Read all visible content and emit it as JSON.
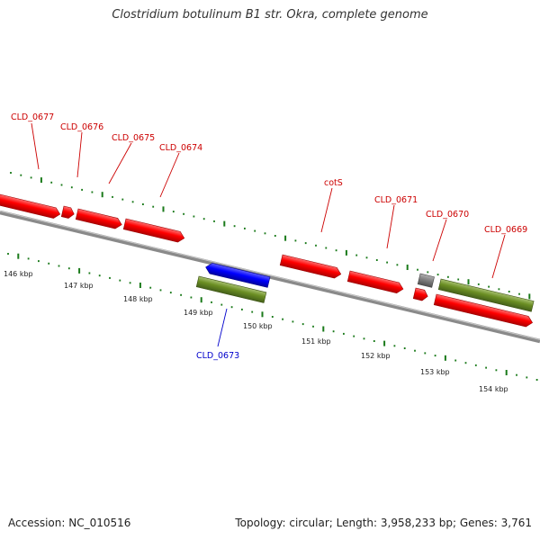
{
  "title": "Clostridium botulinum B1 str. Okra, complete genome",
  "footer": {
    "accession": "Accession: NC_010516",
    "topology": "Topology: circular; Length: 3,958,233 bp; Genes: 3,761"
  },
  "colors": {
    "forward_gene": "#ff0000",
    "reverse_gene": "#0000ff",
    "cds": "#6b8e23",
    "pseudo": "#808080",
    "genome_line": "#888888",
    "ticks": "#1a7a1a",
    "label_red": "#cc0000",
    "label_blue": "#0000cc"
  },
  "scale_labels": [
    "146 kbp",
    "147 kbp",
    "148 kbp",
    "149 kbp",
    "150 kbp",
    "151 kbp",
    "152 kbp",
    "153 kbp",
    "154 kbp"
  ],
  "genes": [
    {
      "label": "CLD_0677",
      "color": "red"
    },
    {
      "label": "CLD_0676",
      "color": "red"
    },
    {
      "label": "CLD_0675",
      "color": "red"
    },
    {
      "label": "CLD_0674",
      "color": "red"
    },
    {
      "label": "CLD_0673",
      "color": "blue"
    },
    {
      "label": "cotS",
      "color": "red"
    },
    {
      "label": "CLD_0671",
      "color": "red"
    },
    {
      "label": "CLD_0670",
      "color": "red"
    },
    {
      "label": "CLD_0669",
      "color": "red"
    }
  ]
}
